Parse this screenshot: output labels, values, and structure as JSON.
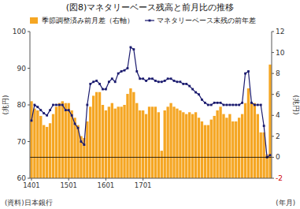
{
  "chart_data": {
    "type": "bar",
    "title": "(図8)マネタリーベース残高と前月比の推移",
    "ylabel": "(兆円)",
    "y2label": "(兆円)",
    "xlabel": "(年月)",
    "source": "(資料)日本銀行",
    "categories": [
      "1401",
      null,
      null,
      null,
      null,
      null,
      null,
      null,
      null,
      null,
      null,
      null,
      "1501",
      null,
      null,
      null,
      null,
      null,
      null,
      null,
      null,
      null,
      null,
      null,
      "1601",
      null,
      null,
      null,
      null,
      null,
      null,
      null,
      null,
      null,
      null,
      null,
      "1701",
      null,
      null,
      null,
      null,
      null,
      null,
      null,
      null,
      null,
      null,
      null,
      null,
      null,
      null,
      null,
      null,
      null,
      null,
      null,
      null,
      null,
      null,
      null,
      null,
      null,
      null,
      null,
      null,
      null,
      null,
      null,
      null,
      null,
      null,
      null,
      null,
      null,
      null,
      null,
      null,
      null
    ],
    "series": [
      {
        "name": "季節調整済み前月差（右軸）",
        "type": "bar",
        "color": "#F5A623",
        "values": [
          81.0,
          79.0,
          78.5,
          77.0,
          74.5,
          74.0,
          75.0,
          77.5,
          79.5,
          80.5,
          81.0,
          80.5,
          80.5,
          78.5,
          76.5,
          74.5,
          71.5,
          71.0,
          75.5,
          79.5,
          82.5,
          83.5,
          83.5,
          80.0,
          78.5,
          79.5,
          80.5,
          79.0,
          79.5,
          79.5,
          80.0,
          83.0,
          84.5,
          83.5,
          80.5,
          78.5,
          78.5,
          77.5,
          79.5,
          79.5,
          79.5,
          78.0,
          67.5,
          78.5,
          79.5,
          80.5,
          79.5,
          79.0,
          78.5,
          78.0,
          77.5,
          78.0,
          77.5,
          78.0,
          76.5,
          75.5,
          74.5,
          74.5,
          76.0,
          77.0,
          78.5,
          79.5,
          77.5,
          76.5,
          77.5,
          75.5,
          75.5,
          76.5,
          77.5,
          80.5,
          84.5,
          80.5,
          80.5,
          77.5,
          72.5,
          72.5,
          66.5,
          91.0
        ]
      },
      {
        "name": "マネタリーベース末残の前年差",
        "type": "line",
        "axis": "y2",
        "color": "#1a1a6e",
        "marker": "square",
        "values": [
          3.5,
          5.0,
          4.8,
          4.5,
          4.2,
          4.0,
          4.5,
          5.0,
          5.0,
          5.0,
          5.0,
          4.5,
          4.5,
          4.0,
          3.2,
          2.8,
          1.5,
          1.2,
          5.0,
          7.0,
          7.2,
          7.3,
          7.0,
          6.5,
          6.5,
          7.2,
          7.5,
          7.2,
          8.0,
          8.2,
          8.3,
          8.5,
          10.5,
          10.3,
          8.2,
          7.5,
          7.5,
          7.3,
          7.5,
          7.5,
          7.3,
          7.2,
          7.2,
          7.3,
          7.5,
          7.5,
          7.3,
          7.2,
          7.2,
          7.0,
          7.0,
          6.8,
          6.5,
          6.2,
          6.0,
          5.5,
          5.2,
          5.0,
          5.0,
          5.2,
          5.2,
          5.2,
          5.0,
          5.0,
          5.0,
          5.0,
          5.0,
          5.0,
          5.2,
          8.0,
          8.2,
          5.2,
          5.0,
          5.0,
          5.0,
          3.0,
          0.0,
          0.2
        ]
      }
    ],
    "ylim": [
      60,
      100
    ],
    "yticks": [
      60,
      70,
      80,
      90,
      100
    ],
    "y2lim": [
      -2,
      12
    ],
    "y2ticks": [
      -2,
      0,
      2,
      4,
      6,
      8,
      10,
      12
    ],
    "hlines": [
      {
        "axis": "y2",
        "value": 0
      }
    ],
    "grid": false,
    "legend": "upper left"
  }
}
